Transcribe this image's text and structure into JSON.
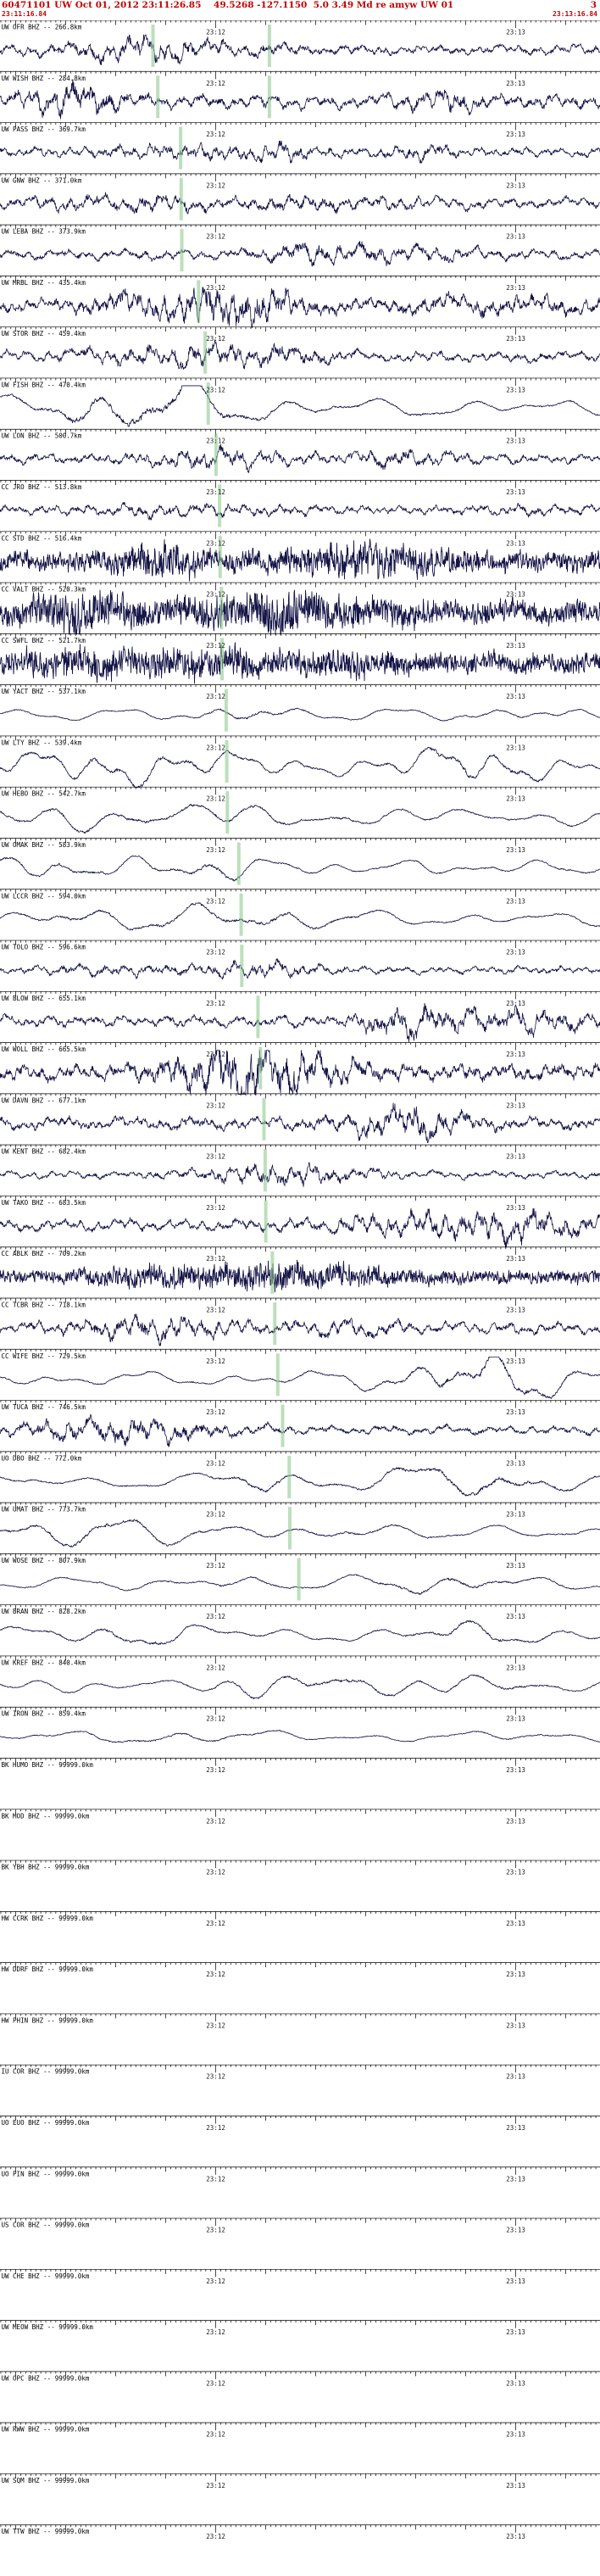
{
  "header": {
    "title_line": "60471101 UW Oct 01, 2012 23:11:26.85    49.5268 -127.1150  5.0 3.49 Md re amyw UW 01",
    "flag": "3",
    "window_start": "23:11:16.84",
    "window_end": "23:13:16.84"
  },
  "axis": {
    "labels": [
      "23:12",
      "23:13"
    ],
    "label_offsets_s": [
      43.16,
      103.16
    ],
    "window_s": 120,
    "first_second_offset_s": 0.16
  },
  "colors": {
    "header_text": "#c00000",
    "trace": "#151547",
    "axis": "#000000",
    "pick": "#90c990",
    "tick_label": "#1a1a1a"
  },
  "traces": [
    {
      "label": "UW OFR BHZ -- 266.8km",
      "style": "noisy",
      "amp": 8,
      "seed": 1,
      "picks": [
        0.255,
        0.449
      ]
    },
    {
      "label": "UW WISH BHZ -- 284.8km",
      "style": "noisy",
      "amp": 11,
      "seed": 2,
      "picks": [
        0.263,
        0.449
      ]
    },
    {
      "label": "UW PASS BHZ -- 369.7km",
      "style": "noisy",
      "amp": 7,
      "seed": 3,
      "picks": [
        0.301
      ]
    },
    {
      "label": "UW GNW BHZ -- 371.0km",
      "style": "noisy",
      "amp": 8,
      "seed": 4,
      "picks": [
        0.302
      ]
    },
    {
      "label": "UW LEBA BHZ -- 373.9km",
      "style": "noisy",
      "amp": 8,
      "seed": 5,
      "picks": [
        0.303
      ]
    },
    {
      "label": "UW MRBL BHZ -- 435.4km",
      "style": "mixed",
      "amp": 9,
      "seed": 6,
      "picks": [
        0.331
      ]
    },
    {
      "label": "UW STOR BHZ -- 459.4km",
      "style": "noisy",
      "amp": 8,
      "seed": 7,
      "picks": [
        0.342
      ]
    },
    {
      "label": "UW FISH BHZ -- 470.4km",
      "style": "smooth",
      "amp": 11,
      "seed": 8,
      "picks": [
        0.347
      ]
    },
    {
      "label": "UW LON BHZ -- 500.7km",
      "style": "noisy",
      "amp": 8,
      "seed": 9,
      "picks": [
        0.36
      ]
    },
    {
      "label": "CC JRO BHZ -- 513.8km",
      "style": "noisy",
      "amp": 7,
      "seed": 10,
      "picks": [
        0.366
      ]
    },
    {
      "label": "CC STD BHZ -- 516.4km",
      "style": "dense",
      "amp": 13,
      "seed": 11,
      "picks": [
        0.367
      ]
    },
    {
      "label": "CC VALT BHZ -- 520.3km",
      "style": "dense",
      "amp": 15,
      "seed": 12,
      "picks": [
        0.369
      ]
    },
    {
      "label": "CC SWFL BHZ -- 521.7km",
      "style": "dense",
      "amp": 13,
      "seed": 13,
      "picks": [
        0.37
      ]
    },
    {
      "label": "UW YACT BHZ -- 537.1km",
      "style": "smooth",
      "amp": 7,
      "seed": 14,
      "picks": [
        0.377
      ]
    },
    {
      "label": "UW LTY BHZ -- 539.4km",
      "style": "smooth",
      "amp": 12,
      "seed": 15,
      "picks": [
        0.378
      ]
    },
    {
      "label": "UW HEBO BHZ -- 542.7km",
      "style": "smooth",
      "amp": 10,
      "seed": 16,
      "picks": [
        0.379
      ]
    },
    {
      "label": "UW OMAK BHZ -- 583.9km",
      "style": "smooth",
      "amp": 9,
      "seed": 17,
      "picks": [
        0.398
      ]
    },
    {
      "label": "UW LCCR BHZ -- 594.0km",
      "style": "smooth",
      "amp": 9,
      "seed": 18,
      "picks": [
        0.402
      ]
    },
    {
      "label": "UW TOLO BHZ -- 596.6km",
      "style": "noisy",
      "amp": 6,
      "seed": 19,
      "picks": [
        0.403
      ]
    },
    {
      "label": "UW BLOW BHZ -- 655.1km",
      "style": "noisy",
      "amp": 9,
      "seed": 20,
      "picks": [
        0.43
      ]
    },
    {
      "label": "UW WOLL BHZ -- 665.5km",
      "style": "mixed",
      "amp": 12,
      "seed": 21,
      "picks": [
        0.434
      ]
    },
    {
      "label": "UW DAVN BHZ -- 677.1km",
      "style": "noisy",
      "amp": 10,
      "seed": 22,
      "picks": [
        0.44
      ]
    },
    {
      "label": "UW KENT BHZ -- 682.4km",
      "style": "noisy",
      "amp": 6,
      "seed": 23,
      "picks": [
        0.442
      ]
    },
    {
      "label": "UW TAKO BHZ -- 683.5km",
      "style": "noisy",
      "amp": 9,
      "seed": 24,
      "picks": [
        0.443
      ]
    },
    {
      "label": "CC ABLK BHZ -- 709.2km",
      "style": "dense",
      "amp": 9,
      "seed": 25,
      "picks": [
        0.454
      ]
    },
    {
      "label": "CC TCBR BHZ -- 718.1km",
      "style": "noisy",
      "amp": 9,
      "seed": 26,
      "picks": [
        0.458
      ]
    },
    {
      "label": "CC WIFE BHZ -- 729.5km",
      "style": "smooth",
      "amp": 9,
      "seed": 27,
      "picks": [
        0.463
      ]
    },
    {
      "label": "UW TUCA BHZ -- 746.5km",
      "style": "noisy",
      "amp": 7,
      "seed": 28,
      "picks": [
        0.471
      ]
    },
    {
      "label": "UO DBO BHZ -- 772.0km",
      "style": "smooth",
      "amp": 9,
      "seed": 29,
      "picks": [
        0.482
      ]
    },
    {
      "label": "UW UMAT BHZ -- 773.7km",
      "style": "smooth",
      "amp": 8,
      "seed": 30,
      "picks": [
        0.483
      ]
    },
    {
      "label": "UW WOSE BHZ -- 807.9km",
      "style": "smooth",
      "amp": 7,
      "seed": 31,
      "picks": [
        0.498
      ]
    },
    {
      "label": "UW BRAN BHZ -- 828.2km",
      "style": "smooth",
      "amp": 9,
      "seed": 32,
      "picks": []
    },
    {
      "label": "UW KREF BHZ -- 840.4km",
      "style": "smooth",
      "amp": 8,
      "seed": 33,
      "picks": []
    },
    {
      "label": "UW IRON BHZ -- 859.4km",
      "style": "smooth",
      "amp": 6,
      "seed": 34,
      "picks": []
    },
    {
      "label": "BK HUMO BHZ -- 99999.0km",
      "style": "flat",
      "amp": 0,
      "seed": 35,
      "picks": []
    },
    {
      "label": "BK MOD BHZ -- 99999.0km",
      "style": "flat",
      "amp": 0,
      "seed": 36,
      "picks": []
    },
    {
      "label": "BK YBH BHZ -- 99999.0km",
      "style": "flat",
      "amp": 0,
      "seed": 37,
      "picks": []
    },
    {
      "label": "HW CCRK BHZ -- 99999.0km",
      "style": "flat",
      "amp": 0,
      "seed": 38,
      "picks": []
    },
    {
      "label": "HW DDRF BHZ -- 99999.0km",
      "style": "flat",
      "amp": 0,
      "seed": 39,
      "picks": []
    },
    {
      "label": "HW PHIN BHZ -- 99999.0km",
      "style": "flat",
      "amp": 0,
      "seed": 40,
      "picks": []
    },
    {
      "label": "IU COR BHZ -- 99999.0km",
      "style": "flat",
      "amp": 0,
      "seed": 41,
      "picks": []
    },
    {
      "label": "UO EUO BHZ -- 99999.0km",
      "style": "flat",
      "amp": 0,
      "seed": 42,
      "picks": []
    },
    {
      "label": "UO PIN BHZ -- 99999.0km",
      "style": "flat",
      "amp": 0,
      "seed": 43,
      "picks": []
    },
    {
      "label": "US COR BHZ -- 99999.0km",
      "style": "flat",
      "amp": 0,
      "seed": 44,
      "picks": []
    },
    {
      "label": "UW CHE BHZ -- 99999.0km",
      "style": "flat",
      "amp": 0,
      "seed": 45,
      "picks": []
    },
    {
      "label": "UW MEOW BHZ -- 99999.0km",
      "style": "flat",
      "amp": 0,
      "seed": 46,
      "picks": []
    },
    {
      "label": "UW OPC BHZ -- 99999.0km",
      "style": "flat",
      "amp": 0,
      "seed": 47,
      "picks": []
    },
    {
      "label": "UW RWW BHZ -- 99999.0km",
      "style": "flat",
      "amp": 0,
      "seed": 48,
      "picks": []
    },
    {
      "label": "UW SQM BHZ -- 99999.0km",
      "style": "flat",
      "amp": 0,
      "seed": 49,
      "picks": []
    },
    {
      "label": "UW TTW BHZ -- 99999.0km",
      "style": "flat",
      "amp": 0,
      "seed": 50,
      "picks": []
    }
  ]
}
